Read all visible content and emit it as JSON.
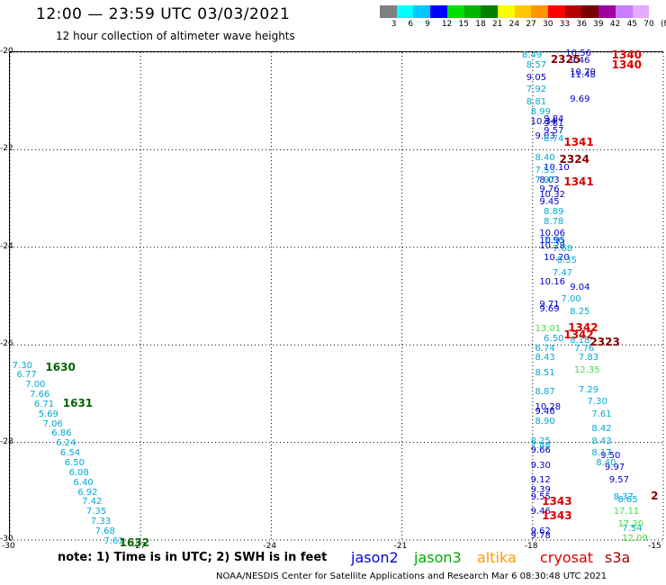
{
  "header": {
    "title": "12:00 — 23:59 UTC 03/03/2021",
    "subtitle": "12 hour collection of altimeter wave heights"
  },
  "color_scale": {
    "labels": [
      "3",
      "6",
      "9",
      "12",
      "15",
      "18",
      "21",
      "24",
      "27",
      "30",
      "33",
      "36",
      "39",
      "42",
      "45",
      "70",
      "(ft)"
    ],
    "colors": [
      "#7f7f7f",
      "#00ffff",
      "#00c8ff",
      "#0000ff",
      "#00e000",
      "#00b400",
      "#008200",
      "#ffff00",
      "#ffc800",
      "#ff9600",
      "#ff0000",
      "#b40000",
      "#780000",
      "#a000a0",
      "#c87cff",
      "#e6aaff",
      "#ffffff"
    ]
  },
  "axes": {
    "y_ticks": [
      "-20",
      "-22",
      "-24",
      "-26",
      "-28",
      "-30"
    ],
    "x_ticks": [
      "-30",
      "-27",
      "-24",
      "-21",
      "-18",
      "-15"
    ],
    "lat_range": [
      -30,
      -20
    ],
    "lon_range": [
      -30,
      -15
    ]
  },
  "chart_data": {
    "type": "scatter",
    "series": [
      {
        "name": "jason2",
        "color": "#0000cc",
        "points": [
          {
            "lon": -18.0,
            "lat": -20.55,
            "v": "9.05"
          },
          {
            "lon": -17.0,
            "lat": -20.5,
            "v": "11.48"
          },
          {
            "lon": -17.0,
            "lat": -20.45,
            "v": "10.70"
          },
          {
            "lon": -17.0,
            "lat": -20.2,
            "v": "9.46"
          },
          {
            "lon": -17.0,
            "lat": -21.0,
            "v": "9.69"
          },
          {
            "lon": -17.6,
            "lat": -21.4,
            "v": "9.84"
          },
          {
            "lon": -17.6,
            "lat": -21.5,
            "v": "9.81"
          },
          {
            "lon": -17.6,
            "lat": -21.65,
            "v": "9.57"
          },
          {
            "lon": -17.9,
            "lat": -21.45,
            "v": "10.34"
          },
          {
            "lon": -17.8,
            "lat": -21.75,
            "v": "9.03"
          },
          {
            "lon": -17.6,
            "lat": -22.4,
            "v": "10.10"
          },
          {
            "lon": -17.7,
            "lat": -22.65,
            "v": "8.03"
          },
          {
            "lon": -17.7,
            "lat": -22.85,
            "v": "9.76"
          },
          {
            "lon": -17.7,
            "lat": -22.95,
            "v": "10.32"
          },
          {
            "lon": -17.7,
            "lat": -23.1,
            "v": "9.45"
          },
          {
            "lon": -17.7,
            "lat": -23.75,
            "v": "10.06"
          },
          {
            "lon": -17.7,
            "lat": -23.9,
            "v": "10.95"
          },
          {
            "lon": -17.7,
            "lat": -24.0,
            "v": "10.28"
          },
          {
            "lon": -17.6,
            "lat": -24.25,
            "v": "10.20"
          },
          {
            "lon": -17.7,
            "lat": -24.75,
            "v": "10.16"
          },
          {
            "lon": -17.7,
            "lat": -25.2,
            "v": "9.71"
          },
          {
            "lon": -17.7,
            "lat": -25.3,
            "v": "9.69"
          },
          {
            "lon": -17.0,
            "lat": -24.85,
            "v": "9.04"
          },
          {
            "lon": -17.8,
            "lat": -27.3,
            "v": "10.28"
          },
          {
            "lon": -17.8,
            "lat": -27.4,
            "v": "9.46"
          },
          {
            "lon": -17.9,
            "lat": -28.2,
            "v": "9.66"
          },
          {
            "lon": -17.9,
            "lat": -28.5,
            "v": "9.30"
          },
          {
            "lon": -17.9,
            "lat": -28.8,
            "v": "9.12"
          },
          {
            "lon": -17.9,
            "lat": -29.0,
            "v": "9.39"
          },
          {
            "lon": -17.9,
            "lat": -29.15,
            "v": "9.55"
          },
          {
            "lon": -17.9,
            "lat": -29.45,
            "v": "9.46"
          },
          {
            "lon": -17.9,
            "lat": -29.85,
            "v": "9.62"
          },
          {
            "lon": -17.9,
            "lat": -29.95,
            "v": "9.78"
          },
          {
            "lon": -16.3,
            "lat": -28.3,
            "v": "9.50"
          },
          {
            "lon": -16.2,
            "lat": -28.55,
            "v": "9.97"
          },
          {
            "lon": -16.1,
            "lat": -28.8,
            "v": "9.57"
          },
          {
            "lon": -17.1,
            "lat": -20.05,
            "v": "10.56"
          }
        ]
      },
      {
        "name": "jason3",
        "color": "#00aad4",
        "points": [
          {
            "lon": -18.1,
            "lat": -20.1,
            "v": "8.49"
          },
          {
            "lon": -18.0,
            "lat": -20.3,
            "v": "8.57"
          },
          {
            "lon": -18.0,
            "lat": -20.8,
            "v": "7.92"
          },
          {
            "lon": -18.0,
            "lat": -21.05,
            "v": "8.81"
          },
          {
            "lon": -17.9,
            "lat": -21.25,
            "v": "8.99"
          },
          {
            "lon": -17.6,
            "lat": -21.8,
            "v": "8.74"
          },
          {
            "lon": -17.8,
            "lat": -22.2,
            "v": "8.40"
          },
          {
            "lon": -17.8,
            "lat": -22.45,
            "v": "7.53"
          },
          {
            "lon": -17.8,
            "lat": -22.65,
            "v": "7.97"
          },
          {
            "lon": -17.6,
            "lat": -23.3,
            "v": "8.89"
          },
          {
            "lon": -17.6,
            "lat": -23.5,
            "v": "8.78"
          },
          {
            "lon": -17.6,
            "lat": -23.9,
            "v": "7.96"
          },
          {
            "lon": -17.4,
            "lat": -24.05,
            "v": "7.68"
          },
          {
            "lon": -17.3,
            "lat": -24.3,
            "v": "8.35"
          },
          {
            "lon": -17.4,
            "lat": -24.55,
            "v": "7.47"
          },
          {
            "lon": -17.2,
            "lat": -25.1,
            "v": "7.00"
          },
          {
            "lon": -17.0,
            "lat": -25.35,
            "v": "8.25"
          },
          {
            "lon": -17.6,
            "lat": -25.9,
            "v": "6.50"
          },
          {
            "lon": -17.0,
            "lat": -25.95,
            "v": "8.18"
          },
          {
            "lon": -17.8,
            "lat": -26.1,
            "v": "6.74"
          },
          {
            "lon": -17.8,
            "lat": -26.3,
            "v": "8.43"
          },
          {
            "lon": -16.9,
            "lat": -26.1,
            "v": "7.76"
          },
          {
            "lon": -16.8,
            "lat": -26.3,
            "v": "7.83"
          },
          {
            "lon": -17.8,
            "lat": -26.6,
            "v": "8.51"
          },
          {
            "lon": -16.8,
            "lat": -26.95,
            "v": "7.29"
          },
          {
            "lon": -17.8,
            "lat": -27.0,
            "v": "8.87"
          },
          {
            "lon": -16.6,
            "lat": -27.2,
            "v": "7.30"
          },
          {
            "lon": -16.5,
            "lat": -27.45,
            "v": "7.61"
          },
          {
            "lon": -17.8,
            "lat": -27.6,
            "v": "8.90"
          },
          {
            "lon": -16.5,
            "lat": -27.75,
            "v": "8.42"
          },
          {
            "lon": -16.5,
            "lat": -28.0,
            "v": "8.43"
          },
          {
            "lon": -16.5,
            "lat": -28.25,
            "v": "8.17"
          },
          {
            "lon": -17.9,
            "lat": -28.0,
            "v": "8.25"
          },
          {
            "lon": -17.9,
            "lat": -28.1,
            "v": "7.88"
          },
          {
            "lon": -16.4,
            "lat": -28.45,
            "v": "8.40"
          },
          {
            "lon": -16.0,
            "lat": -29.15,
            "v": "8.37"
          },
          {
            "lon": -15.9,
            "lat": -29.2,
            "v": "8.65"
          },
          {
            "lon": -15.8,
            "lat": -29.8,
            "v": "7.54"
          },
          {
            "lon": -29.8,
            "lat": -26.45,
            "v": "7.30"
          },
          {
            "lon": -29.7,
            "lat": -26.65,
            "v": "6.77"
          },
          {
            "lon": -29.5,
            "lat": -26.85,
            "v": "7.00"
          },
          {
            "lon": -29.4,
            "lat": -27.05,
            "v": "7.66"
          },
          {
            "lon": -29.3,
            "lat": -27.25,
            "v": "6.71"
          },
          {
            "lon": -29.2,
            "lat": -27.45,
            "v": "5.69"
          },
          {
            "lon": -29.1,
            "lat": -27.65,
            "v": "7.06"
          },
          {
            "lon": -28.9,
            "lat": -27.85,
            "v": "6.86"
          },
          {
            "lon": -28.8,
            "lat": -28.05,
            "v": "6.24"
          },
          {
            "lon": -28.7,
            "lat": -28.25,
            "v": "6.54"
          },
          {
            "lon": -28.6,
            "lat": -28.45,
            "v": "6.50"
          },
          {
            "lon": -28.5,
            "lat": -28.65,
            "v": "6.08"
          },
          {
            "lon": -28.4,
            "lat": -28.85,
            "v": "6.40"
          },
          {
            "lon": -28.3,
            "lat": -29.05,
            "v": "6.92"
          },
          {
            "lon": -28.2,
            "lat": -29.25,
            "v": "7.42"
          },
          {
            "lon": -28.1,
            "lat": -29.45,
            "v": "7.35"
          },
          {
            "lon": -28.0,
            "lat": -29.65,
            "v": "7.33"
          },
          {
            "lon": -27.9,
            "lat": -29.85,
            "v": "7.68"
          },
          {
            "lon": -27.7,
            "lat": -30.05,
            "v": "7.61"
          }
        ]
      },
      {
        "name": "green",
        "color": "#44dd44",
        "points": [
          {
            "lon": -17.8,
            "lat": -25.7,
            "v": "13.01"
          },
          {
            "lon": -16.9,
            "lat": -26.55,
            "v": "12.35"
          },
          {
            "lon": -16.0,
            "lat": -29.45,
            "v": "17.11"
          },
          {
            "lon": -15.9,
            "lat": -29.7,
            "v": "17.30"
          },
          {
            "lon": -15.8,
            "lat": -30.0,
            "v": "12.09"
          }
        ]
      },
      {
        "name": "pass",
        "color": "#dd0000",
        "points": [
          {
            "lon": -16.0,
            "lat": -20.05,
            "v": "1340"
          },
          {
            "lon": -16.0,
            "lat": -20.25,
            "v": "1340"
          },
          {
            "lon": -17.1,
            "lat": -21.85,
            "v": "1341"
          },
          {
            "lon": -17.1,
            "lat": -22.65,
            "v": "1341"
          },
          {
            "lon": -17.0,
            "lat": -25.65,
            "v": "1342"
          },
          {
            "lon": -17.1,
            "lat": -25.8,
            "v": "1342"
          },
          {
            "lon": -17.6,
            "lat": -29.2,
            "v": "1343"
          },
          {
            "lon": -17.6,
            "lat": -29.5,
            "v": "1343"
          }
        ]
      },
      {
        "name": "pass-dark",
        "color": "#880000",
        "points": [
          {
            "lon": -17.4,
            "lat": -20.15,
            "v": "2325"
          },
          {
            "lon": -17.2,
            "lat": -22.2,
            "v": "2324"
          },
          {
            "lon": -16.5,
            "lat": -25.95,
            "v": "2323"
          },
          {
            "lon": -15.1,
            "lat": -29.1,
            "v": "2"
          }
        ]
      },
      {
        "name": "pass-green",
        "color": "#006600",
        "points": [
          {
            "lon": -29.0,
            "lat": -26.45,
            "v": "1630"
          },
          {
            "lon": -28.6,
            "lat": -27.2,
            "v": "1631"
          },
          {
            "lon": -27.3,
            "lat": -30.05,
            "v": "1632"
          }
        ]
      }
    ]
  },
  "note": "note: 1) Time is in UTC; 2) SWH is in feet",
  "legend": [
    {
      "label": "jason2",
      "color": "#0000dd"
    },
    {
      "label": "jason3",
      "color": "#00aa00"
    },
    {
      "label": "altika",
      "color": "#ff9900"
    },
    {
      "label": "cryosat",
      "color": "#dd0000"
    },
    {
      "label": "s3a",
      "color": "#aa0000"
    }
  ],
  "footer": "NOAA/NESDIS Center for Satellite Applications and Research    Mar  6 08:30:48 UTC 2021"
}
